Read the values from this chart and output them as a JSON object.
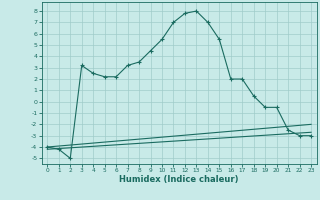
{
  "title": "",
  "xlabel": "Humidex (Indice chaleur)",
  "background_color": "#c8eae8",
  "grid_color": "#a0ccca",
  "line_color": "#1a6b60",
  "xlim": [
    -0.5,
    23.5
  ],
  "ylim": [
    -5.5,
    8.8
  ],
  "xticks": [
    0,
    1,
    2,
    3,
    4,
    5,
    6,
    7,
    8,
    9,
    10,
    11,
    12,
    13,
    14,
    15,
    16,
    17,
    18,
    19,
    20,
    21,
    22,
    23
  ],
  "yticks": [
    -5,
    -4,
    -3,
    -2,
    -1,
    0,
    1,
    2,
    3,
    4,
    5,
    6,
    7,
    8
  ],
  "line1_x": [
    0,
    1,
    2,
    3,
    4,
    5,
    6,
    7,
    8,
    9,
    10,
    11,
    12,
    13,
    14,
    15,
    16,
    17,
    18,
    19,
    20,
    21,
    22,
    23
  ],
  "line1_y": [
    -4.0,
    -4.2,
    -5.0,
    3.2,
    2.5,
    2.2,
    2.2,
    3.2,
    3.5,
    4.5,
    5.5,
    7.0,
    7.8,
    8.0,
    7.0,
    5.5,
    2.0,
    2.0,
    0.5,
    -0.5,
    -0.5,
    -2.5,
    -3.0,
    -3.0
  ],
  "line2_x": [
    0,
    23
  ],
  "line2_y": [
    -4.2,
    -2.7
  ],
  "line3_x": [
    0,
    23
  ],
  "line3_y": [
    -4.0,
    -2.0
  ]
}
